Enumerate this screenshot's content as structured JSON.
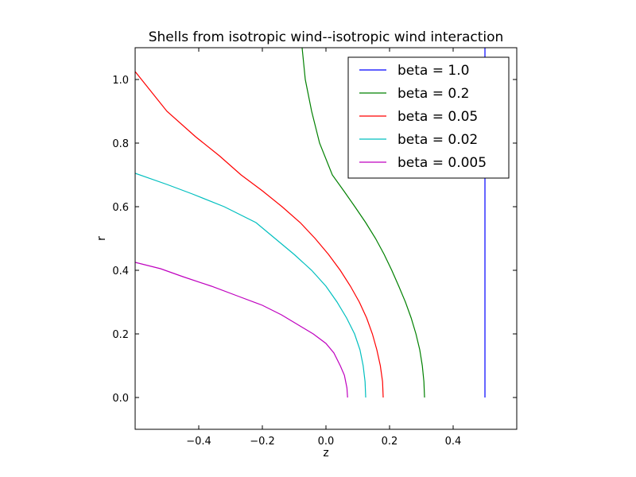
{
  "chart_data": {
    "type": "line",
    "title": "Shells from isotropic wind--isotropic wind interaction",
    "xlabel": "z",
    "ylabel": "r",
    "xlim": [
      -0.6,
      0.6
    ],
    "ylim": [
      -0.1,
      1.1
    ],
    "xticks": [
      -0.4,
      -0.2,
      0.0,
      0.2,
      0.4
    ],
    "xtick_labels": [
      "−0.4",
      "−0.2",
      "0.0",
      "0.2",
      "0.4"
    ],
    "yticks": [
      0.0,
      0.2,
      0.4,
      0.6,
      0.8,
      1.0
    ],
    "ytick_labels": [
      "0.0",
      "0.2",
      "0.4",
      "0.6",
      "0.8",
      "1.0"
    ],
    "grid": false,
    "legend_position": "top-right",
    "series": [
      {
        "name": "beta = 1.0",
        "color": "#0000ff",
        "points": [
          [
            0.5,
            0.0
          ],
          [
            0.5,
            0.3
          ],
          [
            0.5,
            0.6
          ],
          [
            0.5,
            0.9
          ],
          [
            0.5,
            1.1
          ]
        ]
      },
      {
        "name": "beta = 0.2",
        "color": "#008000",
        "points": [
          [
            0.31,
            0.0
          ],
          [
            0.308,
            0.05
          ],
          [
            0.303,
            0.1
          ],
          [
            0.295,
            0.15
          ],
          [
            0.283,
            0.2
          ],
          [
            0.268,
            0.25
          ],
          [
            0.25,
            0.3
          ],
          [
            0.229,
            0.35
          ],
          [
            0.207,
            0.4
          ],
          [
            0.183,
            0.45
          ],
          [
            0.156,
            0.5
          ],
          [
            0.125,
            0.55
          ],
          [
            0.091,
            0.6
          ],
          [
            0.056,
            0.65
          ],
          [
            0.02,
            0.7
          ],
          [
            -0.02,
            0.8
          ],
          [
            -0.045,
            0.9
          ],
          [
            -0.065,
            1.0
          ],
          [
            -0.075,
            1.1
          ]
        ]
      },
      {
        "name": "beta = 0.05",
        "color": "#ff0000",
        "points": [
          [
            0.18,
            0.0
          ],
          [
            0.178,
            0.05
          ],
          [
            0.171,
            0.1
          ],
          [
            0.16,
            0.15
          ],
          [
            0.146,
            0.2
          ],
          [
            0.128,
            0.25
          ],
          [
            0.105,
            0.3
          ],
          [
            0.077,
            0.35
          ],
          [
            0.045,
            0.4
          ],
          [
            0.008,
            0.45
          ],
          [
            -0.034,
            0.5
          ],
          [
            -0.081,
            0.55
          ],
          [
            -0.138,
            0.6
          ],
          [
            -0.2,
            0.65
          ],
          [
            -0.267,
            0.7
          ],
          [
            -0.335,
            0.76
          ],
          [
            -0.41,
            0.82
          ],
          [
            -0.5,
            0.9
          ],
          [
            -0.6,
            1.025
          ]
        ]
      },
      {
        "name": "beta = 0.02",
        "color": "#00bfbf",
        "points": [
          [
            0.125,
            0.0
          ],
          [
            0.123,
            0.05
          ],
          [
            0.117,
            0.1
          ],
          [
            0.107,
            0.15
          ],
          [
            0.09,
            0.2
          ],
          [
            0.065,
            0.25
          ],
          [
            0.035,
            0.3
          ],
          [
            0.0,
            0.35
          ],
          [
            -0.045,
            0.4
          ],
          [
            -0.1,
            0.45
          ],
          [
            -0.16,
            0.5
          ],
          [
            -0.22,
            0.55
          ],
          [
            -0.32,
            0.6
          ],
          [
            -0.42,
            0.64
          ],
          [
            -0.5,
            0.67
          ],
          [
            -0.6,
            0.705
          ]
        ]
      },
      {
        "name": "beta = 0.005",
        "color": "#bf00bf",
        "points": [
          [
            0.068,
            0.0
          ],
          [
            0.066,
            0.03
          ],
          [
            0.058,
            0.07
          ],
          [
            0.045,
            0.1
          ],
          [
            0.025,
            0.14
          ],
          [
            0.0,
            0.17
          ],
          [
            -0.04,
            0.2
          ],
          [
            -0.09,
            0.23
          ],
          [
            -0.14,
            0.26
          ],
          [
            -0.2,
            0.29
          ],
          [
            -0.28,
            0.32
          ],
          [
            -0.36,
            0.35
          ],
          [
            -0.45,
            0.38
          ],
          [
            -0.52,
            0.405
          ],
          [
            -0.6,
            0.425
          ]
        ]
      }
    ]
  }
}
